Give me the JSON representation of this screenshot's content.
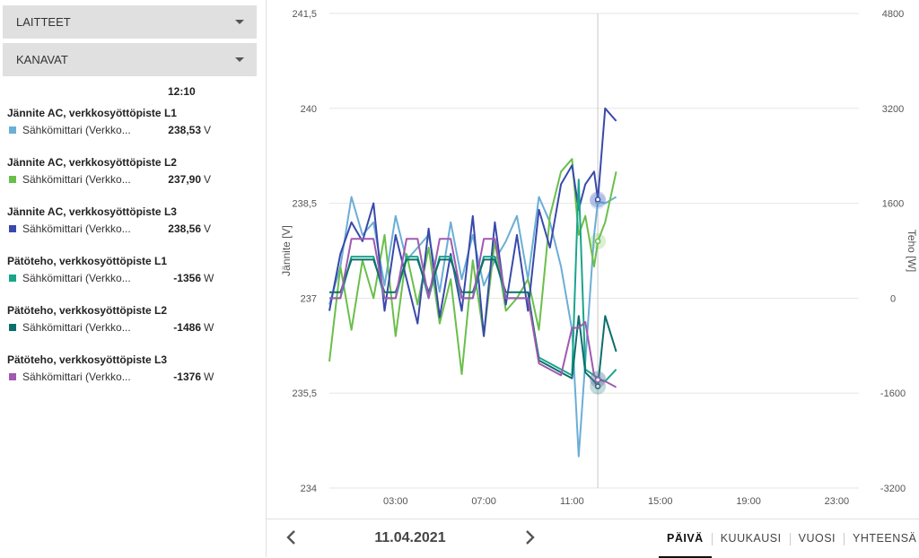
{
  "sidebar": {
    "devices_label": "LAITTEET",
    "channels_label": "KANAVAT",
    "current_time": "12:10",
    "channels": [
      {
        "title": "Jännite AC, verkkosyöttöpiste L1",
        "source": "Sähkömittari (Verkko...",
        "value": "238,53",
        "unit": "V",
        "color": "#6baed6"
      },
      {
        "title": "Jännite AC, verkkosyöttöpiste L2",
        "source": "Sähkömittari (Verkko...",
        "value": "237,90",
        "unit": "V",
        "color": "#6abf4b"
      },
      {
        "title": "Jännite AC, verkkosyöttöpiste L3",
        "source": "Sähkömittari (Verkko...",
        "value": "238,56",
        "unit": "V",
        "color": "#3949ab"
      },
      {
        "title": "Pätöteho, verkkosyöttöpiste L1",
        "source": "Sähkömittari (Verkko...",
        "value": "-1356",
        "unit": "W",
        "color": "#1aa58a"
      },
      {
        "title": "Pätöteho, verkkosyöttöpiste L2",
        "source": "Sähkömittari (Verkko...",
        "value": "-1486",
        "unit": "W",
        "color": "#0d6e6e"
      },
      {
        "title": "Pätöteho, verkkosyöttöpiste L3",
        "source": "Sähkömittari (Verkko...",
        "value": "-1376",
        "unit": "W",
        "color": "#a05ab0"
      }
    ]
  },
  "chart_data": {
    "type": "line",
    "ylabel": "Jännite [V]",
    "y2label": "Teho [W]",
    "ylim": [
      234,
      241.5
    ],
    "y2lim": [
      -3200,
      4800
    ],
    "yticks": [
      "241,5",
      "240",
      "238,5",
      "237",
      "235,5",
      "234"
    ],
    "y2ticks": [
      "4800",
      "3200",
      "1600",
      "0",
      "-1600",
      "-3200"
    ],
    "xticks": [
      "03:00",
      "07:00",
      "11:00",
      "15:00",
      "19:00",
      "23:00"
    ],
    "cursor_time": "12:10",
    "grid": true,
    "series": [
      {
        "name": "Jännite AC, verkkosyöttöpiste L1",
        "axis": "left",
        "color": "#6baed6",
        "x": [
          0.0,
          0.5,
          1.0,
          1.5,
          2.0,
          2.5,
          3.0,
          3.5,
          4.0,
          4.5,
          5.0,
          5.5,
          6.0,
          6.5,
          7.0,
          7.5,
          8.0,
          8.5,
          9.0,
          9.5,
          10.0,
          10.5,
          11.0,
          11.3,
          11.6,
          12.0,
          12.17,
          12.5,
          13.0
        ],
        "y": [
          236.9,
          237.5,
          238.6,
          238.0,
          238.2,
          237.2,
          238.3,
          237.6,
          237.8,
          238.0,
          237.1,
          238.2,
          237.3,
          238.0,
          237.2,
          237.6,
          237.9,
          238.3,
          237.3,
          238.6,
          238.2,
          237.5,
          236.5,
          234.5,
          236.0,
          238.0,
          238.53,
          238.5,
          238.6
        ]
      },
      {
        "name": "Jännite AC, verkkosyöttöpiste L2",
        "axis": "left",
        "color": "#6abf4b",
        "x": [
          0.0,
          0.5,
          1.0,
          1.5,
          2.0,
          2.5,
          3.0,
          3.5,
          4.0,
          4.5,
          5.0,
          5.5,
          6.0,
          6.5,
          7.0,
          7.5,
          8.0,
          8.5,
          9.0,
          9.5,
          10.0,
          10.5,
          11.0,
          11.3,
          11.6,
          12.0,
          12.17,
          12.5,
          13.0
        ],
        "y": [
          236.0,
          237.5,
          236.5,
          237.6,
          237.0,
          238.0,
          236.4,
          237.7,
          236.9,
          237.8,
          236.6,
          237.3,
          235.8,
          237.6,
          236.4,
          237.9,
          236.8,
          237.0,
          237.3,
          236.5,
          238.3,
          239.0,
          239.2,
          238.0,
          238.3,
          237.5,
          237.9,
          238.2,
          239.0
        ]
      },
      {
        "name": "Jännite AC, verkkosyöttöpiste L3",
        "axis": "left",
        "color": "#3949ab",
        "x": [
          0.0,
          0.5,
          1.0,
          1.5,
          2.0,
          2.5,
          3.0,
          3.5,
          4.0,
          4.5,
          5.0,
          5.5,
          6.0,
          6.5,
          7.0,
          7.5,
          8.0,
          8.5,
          9.0,
          9.5,
          10.0,
          10.5,
          11.0,
          11.3,
          11.6,
          12.0,
          12.17,
          12.5,
          13.0
        ],
        "y": [
          236.8,
          237.7,
          238.2,
          237.9,
          238.5,
          236.8,
          238.0,
          237.3,
          236.6,
          238.1,
          236.7,
          237.7,
          236.8,
          238.3,
          236.4,
          238.2,
          236.9,
          238.0,
          236.8,
          238.4,
          237.8,
          238.8,
          239.1,
          238.4,
          238.8,
          239.0,
          238.56,
          240.0,
          239.8
        ]
      },
      {
        "name": "Pätöteho, verkkosyöttöpiste L1",
        "axis": "right",
        "color": "#1aa58a",
        "x": [
          0.0,
          0.5,
          1.0,
          1.5,
          2.0,
          2.5,
          3.0,
          3.5,
          4.0,
          4.5,
          5.0,
          5.5,
          6.0,
          6.5,
          7.0,
          7.5,
          8.0,
          8.5,
          9.0,
          9.5,
          10.0,
          10.5,
          11.0,
          11.3,
          11.6,
          12.0,
          12.17,
          12.5,
          13.0
        ],
        "y": [
          0,
          0,
          700,
          700,
          700,
          0,
          0,
          700,
          700,
          0,
          700,
          700,
          0,
          0,
          700,
          700,
          0,
          0,
          0,
          -1000,
          -1100,
          -1200,
          -1300,
          2000,
          -1200,
          -1300,
          -1356,
          -1400,
          -1200
        ]
      },
      {
        "name": "Pätöteho, verkkosyöttöpiste L2",
        "axis": "right",
        "color": "#0d6e6e",
        "x": [
          0.0,
          0.5,
          1.0,
          1.5,
          2.0,
          2.5,
          3.0,
          3.5,
          4.0,
          4.5,
          5.0,
          5.5,
          6.0,
          6.5,
          7.0,
          7.5,
          8.0,
          8.5,
          9.0,
          9.5,
          10.0,
          10.5,
          11.0,
          11.3,
          11.6,
          12.0,
          12.17,
          12.5,
          13.0
        ],
        "y": [
          100,
          100,
          650,
          650,
          650,
          100,
          100,
          650,
          650,
          100,
          650,
          650,
          100,
          100,
          650,
          650,
          100,
          100,
          100,
          -1050,
          -1150,
          -1250,
          -1350,
          -300,
          -1250,
          -1400,
          -1486,
          -300,
          -900
        ]
      },
      {
        "name": "Pätöteho, verkkosyöttöpiste L3",
        "axis": "right",
        "color": "#a05ab0",
        "x": [
          0.0,
          0.5,
          1.0,
          1.5,
          2.0,
          2.5,
          3.0,
          3.5,
          4.0,
          4.5,
          5.0,
          5.5,
          6.0,
          6.5,
          7.0,
          7.5,
          8.0,
          8.5,
          9.0,
          9.5,
          10.0,
          10.5,
          11.0,
          11.3,
          11.6,
          12.0,
          12.17,
          12.5,
          13.0
        ],
        "y": [
          0,
          0,
          1000,
          1000,
          1000,
          0,
          0,
          1000,
          1000,
          0,
          1000,
          1000,
          0,
          0,
          1000,
          1000,
          0,
          0,
          0,
          -1100,
          -1200,
          -1300,
          -500,
          -500,
          -400,
          -1300,
          -1376,
          -1400,
          -1500
        ]
      }
    ]
  },
  "footer": {
    "date": "11.04.2021",
    "tabs": [
      "PÄIVÄ",
      "KUUKAUSI",
      "VUOSI",
      "YHTEENSÄ"
    ],
    "active_tab": 0
  }
}
